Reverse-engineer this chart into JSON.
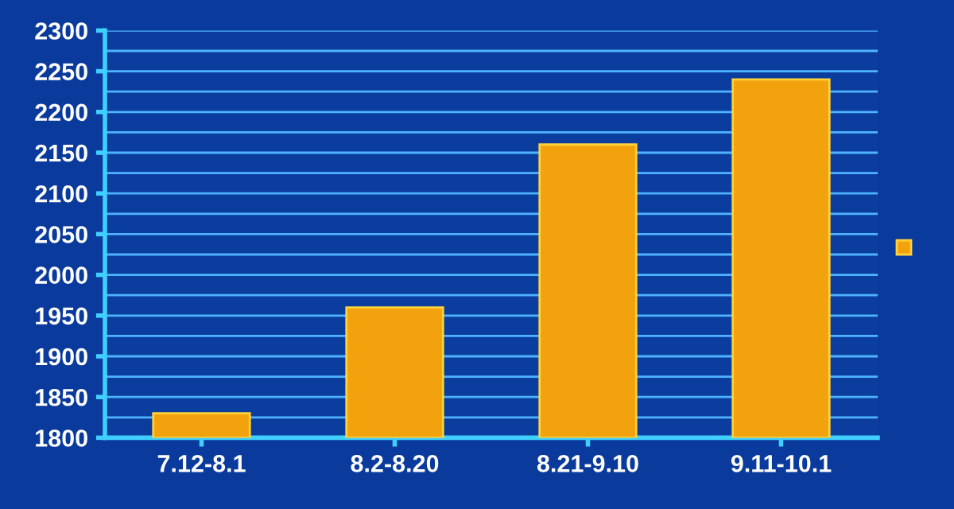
{
  "chart_data": {
    "type": "bar",
    "categories": [
      "7.12-8.1",
      "8.2-8.20",
      "8.21-9.10",
      "9.11-10.1"
    ],
    "series": [
      {
        "color": "#f2a20c",
        "values": [
          1830,
          1960,
          2160,
          2240
        ]
      }
    ],
    "ylim": [
      1800,
      2300
    ],
    "yticks": [
      1800,
      {
        "value": 1825,
        "label": null
      },
      1850,
      {
        "value": 1875,
        "label": null
      },
      1900,
      {
        "value": 1925,
        "label": null
      },
      1950,
      {
        "value": 1975,
        "label": null
      },
      2000,
      {
        "value": 2025,
        "label": null
      },
      2050,
      {
        "value": 2075,
        "label": null
      },
      2100,
      {
        "value": 2125,
        "label": null
      },
      2150,
      {
        "value": 2175,
        "label": null
      },
      2200,
      {
        "value": 2225,
        "label": null
      },
      2250,
      {
        "value": 2275,
        "label": null
      },
      2300
    ],
    "grid": "y"
  }
}
